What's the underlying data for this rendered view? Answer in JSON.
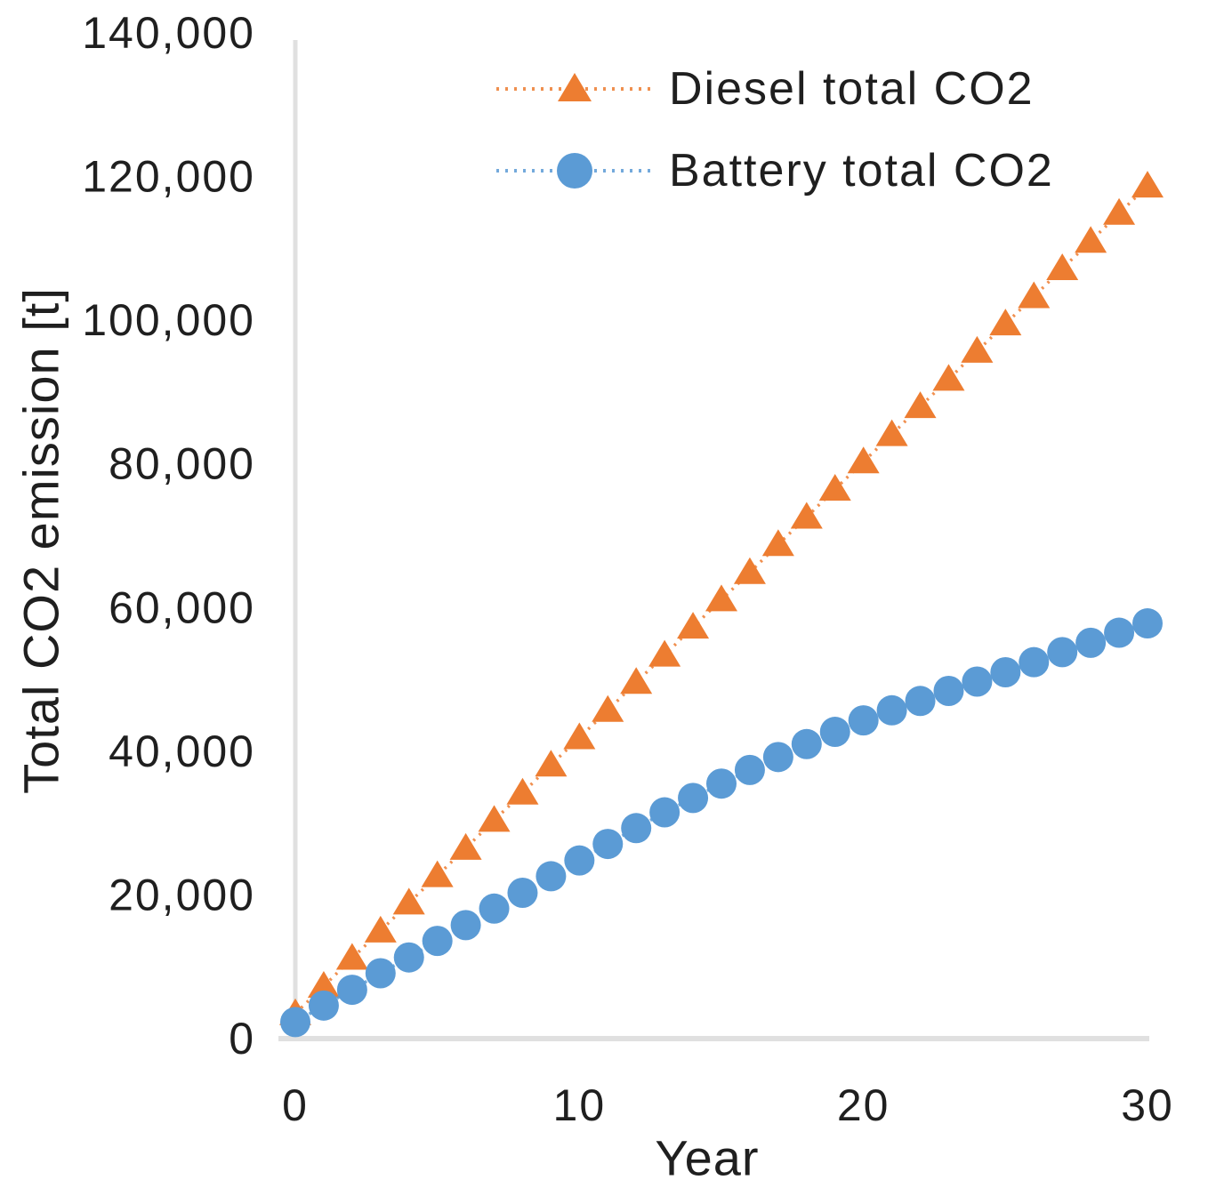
{
  "chart_data": {
    "type": "line",
    "title": "",
    "xlabel": "Year",
    "ylabel": "Total CO2 emission [t]",
    "xlim": [
      0,
      30
    ],
    "ylim": [
      0,
      140000
    ],
    "grid": "off",
    "legend_position": "top-center-inside",
    "line_style": "dotted",
    "background": "#ffffff",
    "axis_line_color": "#e0e0e0",
    "text_color": "#1f1f1f",
    "x_ticks": {
      "values": [
        0,
        10,
        20,
        30
      ],
      "labels": [
        "0",
        "10",
        "20",
        "30"
      ]
    },
    "y_ticks": {
      "values": [
        0,
        20000,
        40000,
        60000,
        80000,
        100000,
        120000,
        140000
      ],
      "labels": [
        "0",
        "20,000",
        "40,000",
        "60,000",
        "80,000",
        "100,000",
        "120,000",
        "140,000"
      ]
    },
    "x": [
      0,
      1,
      2,
      3,
      4,
      5,
      6,
      7,
      8,
      9,
      10,
      11,
      12,
      13,
      14,
      15,
      16,
      17,
      18,
      19,
      20,
      21,
      22,
      23,
      24,
      25,
      26,
      27,
      28,
      29,
      30
    ],
    "series": [
      {
        "name": "Diesel total CO2",
        "marker": "triangle",
        "color": "#ED7D31",
        "values": [
          3500,
          7300,
          11200,
          15000,
          18900,
          22700,
          26500,
          30400,
          34200,
          38100,
          41900,
          45700,
          49600,
          53400,
          57300,
          61100,
          64900,
          68800,
          72600,
          76500,
          80300,
          84100,
          88000,
          91800,
          95700,
          99500,
          103300,
          107200,
          111000,
          114900,
          118700
        ]
      },
      {
        "name": "Battery total CO2",
        "marker": "circle",
        "color": "#5B9BD5",
        "values": [
          2300,
          4600,
          6800,
          9100,
          11300,
          13600,
          15800,
          18100,
          20300,
          22600,
          24800,
          27100,
          29300,
          31500,
          33500,
          35500,
          37400,
          39200,
          41000,
          42700,
          44300,
          45700,
          47000,
          48400,
          49700,
          51000,
          52400,
          53800,
          55100,
          56500,
          57800
        ]
      }
    ]
  }
}
